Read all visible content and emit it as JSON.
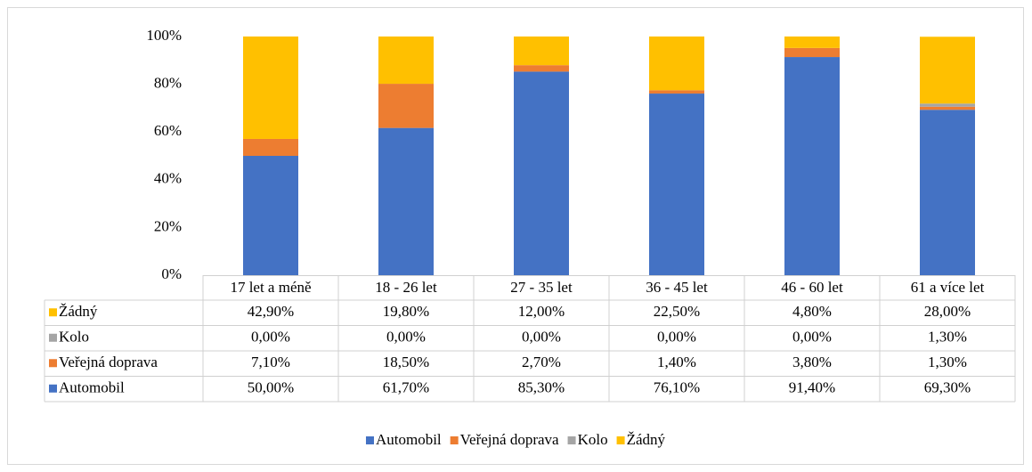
{
  "chart_data": {
    "type": "stacked_bar",
    "categories": [
      "17 let a méně",
      "18 - 26 let",
      "27 - 35 let",
      "36 - 45 let",
      "46 - 60 let",
      "61 a více let"
    ],
    "series": [
      {
        "name": "Automobil",
        "color": "#4472c4",
        "values": [
          50,
          61.7,
          85.3,
          76.1,
          91.4,
          69.3
        ],
        "value_labels": [
          "50,00%",
          "61,70%",
          "85,30%",
          "76,10%",
          "91,40%",
          "69,30%"
        ]
      },
      {
        "name": "Veřejná doprava",
        "color": "#ed7d31",
        "values": [
          7.1,
          18.5,
          2.7,
          1.4,
          3.8,
          1.3
        ],
        "value_labels": [
          "7,10%",
          "18,50%",
          "2,70%",
          "1,40%",
          "3,80%",
          "1,30%"
        ]
      },
      {
        "name": "Kolo",
        "color": "#a5a5a5",
        "values": [
          0,
          0,
          0,
          0,
          0,
          1.3
        ],
        "value_labels": [
          "0,00%",
          "0,00%",
          "0,00%",
          "0,00%",
          "0,00%",
          "1,30%"
        ]
      },
      {
        "name": "Žádný",
        "color": "#ffc000",
        "values": [
          42.9,
          19.8,
          12,
          22.5,
          4.8,
          28
        ],
        "value_labels": [
          "42,90%",
          "19,80%",
          "12,00%",
          "22,50%",
          "4,80%",
          "28,00%"
        ]
      }
    ],
    "ylim": [
      0,
      100
    ],
    "yticks": [
      {
        "value": 0,
        "label": "0%"
      },
      {
        "value": 20,
        "label": "20%"
      },
      {
        "value": 40,
        "label": "40%"
      },
      {
        "value": 60,
        "label": "60%"
      },
      {
        "value": 80,
        "label": "80%"
      },
      {
        "value": 100,
        "label": "100%"
      }
    ],
    "grid": false,
    "legend": "bottom",
    "data_table": true
  }
}
